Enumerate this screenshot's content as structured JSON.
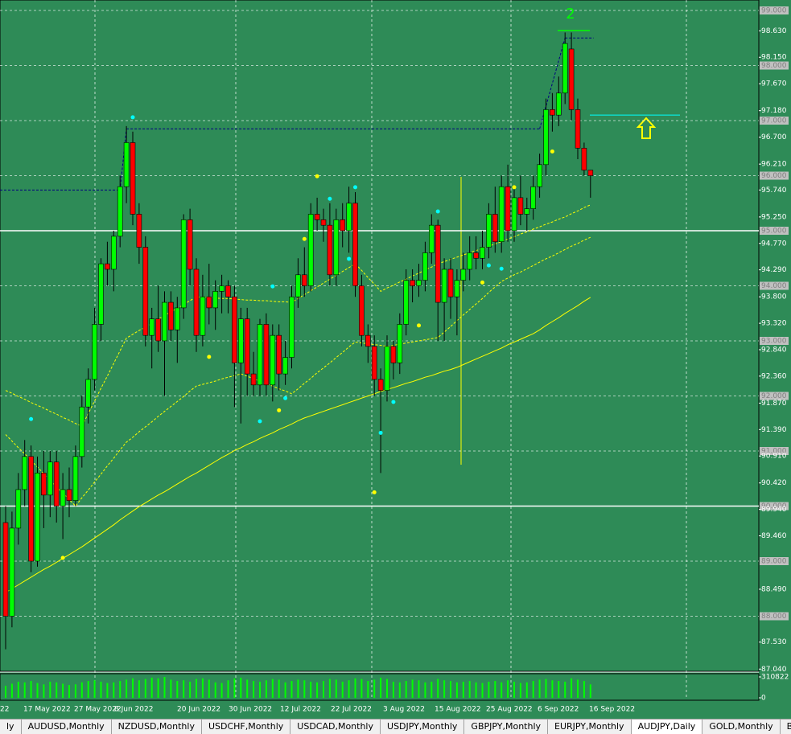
{
  "chart_data": {
    "type": "candlestick",
    "annotation": "2",
    "ylim": [
      87.0,
      99.19
    ],
    "yticks": [
      {
        "value": 98.63,
        "label": "98.630"
      },
      {
        "value": 98.15,
        "label": "98.150"
      },
      {
        "value": 97.67,
        "label": "97.670"
      },
      {
        "value": 97.18,
        "label": "97.180"
      },
      {
        "value": 96.7,
        "label": "96.700"
      },
      {
        "value": 96.21,
        "label": "96.210"
      },
      {
        "value": 95.74,
        "label": "95.740"
      },
      {
        "value": 95.25,
        "label": "95.250"
      },
      {
        "value": 94.77,
        "label": "94.770"
      },
      {
        "value": 94.29,
        "label": "94.290"
      },
      {
        "value": 93.8,
        "label": "93.800"
      },
      {
        "value": 93.32,
        "label": "93.320"
      },
      {
        "value": 92.84,
        "label": "92.840"
      },
      {
        "value": 92.36,
        "label": "92.360"
      },
      {
        "value": 91.87,
        "label": "91.870"
      },
      {
        "value": 91.39,
        "label": "91.390"
      },
      {
        "value": 90.91,
        "label": "90.910"
      },
      {
        "value": 90.42,
        "label": "90.420"
      },
      {
        "value": 89.94,
        "label": "89.940"
      },
      {
        "value": 89.46,
        "label": "89.460"
      },
      {
        "value": 88.49,
        "label": "88.490"
      },
      {
        "value": 87.53,
        "label": "87.530"
      },
      {
        "value": 87.04,
        "label": "87.040"
      }
    ],
    "levels": [
      {
        "value": 99,
        "label": "99.000"
      },
      {
        "value": 98,
        "label": "98.000"
      },
      {
        "value": 97,
        "label": "97.000"
      },
      {
        "value": 96,
        "label": "96.000"
      },
      {
        "value": 95,
        "label": "95.000"
      },
      {
        "value": 94,
        "label": "94.000"
      },
      {
        "value": 93,
        "label": "93.000"
      },
      {
        "value": 92,
        "label": "92.000"
      },
      {
        "value": 91,
        "label": "91.000"
      },
      {
        "value": 90,
        "label": "90.000"
      },
      {
        "value": 89,
        "label": "89.000"
      },
      {
        "value": 88,
        "label": "88.000"
      }
    ],
    "hlines": [
      95,
      90
    ],
    "target_line": 97.1,
    "step_line": [
      95.74,
      96.85,
      98.5
    ],
    "date_labels": [
      "22",
      "17 May 2022",
      "27 May 2022",
      "8 Jun 2022",
      "20 Jun 2022",
      "30 Jun 2022",
      "12 Jul 2022",
      "22 Jul 2022",
      "3 Aug 2022",
      "15 Aug 2022",
      "25 Aug 2022",
      "6 Sep 2022",
      "16 Sep 2022"
    ],
    "candles": [
      [
        89.7,
        90.0,
        87.4,
        88.0
      ],
      [
        88.0,
        89.9,
        87.8,
        89.6
      ],
      [
        89.6,
        90.6,
        89.3,
        90.3
      ],
      [
        90.3,
        91.2,
        90.0,
        90.9
      ],
      [
        90.9,
        91.1,
        88.8,
        89.0
      ],
      [
        89.0,
        90.9,
        88.9,
        90.6
      ],
      [
        90.6,
        91.0,
        89.6,
        90.2
      ],
      [
        90.2,
        91.0,
        89.8,
        90.8
      ],
      [
        90.8,
        91.0,
        89.7,
        90.0
      ],
      [
        90.0,
        90.6,
        89.4,
        90.3
      ],
      [
        90.3,
        90.7,
        89.8,
        90.1
      ],
      [
        90.1,
        91.1,
        90.0,
        90.9
      ],
      [
        90.9,
        92.0,
        90.7,
        91.8
      ],
      [
        91.8,
        92.5,
        91.5,
        92.3
      ],
      [
        92.3,
        93.6,
        92.1,
        93.3
      ],
      [
        93.3,
        94.5,
        93.0,
        94.4
      ],
      [
        94.4,
        94.8,
        94.0,
        94.3
      ],
      [
        94.3,
        95.0,
        93.9,
        94.9
      ],
      [
        94.9,
        96.0,
        94.7,
        95.8
      ],
      [
        95.8,
        96.9,
        95.5,
        96.6
      ],
      [
        96.6,
        96.8,
        95.1,
        95.3
      ],
      [
        95.3,
        95.5,
        94.4,
        94.7
      ],
      [
        94.7,
        94.9,
        92.9,
        93.1
      ],
      [
        93.1,
        93.6,
        92.5,
        93.4
      ],
      [
        93.4,
        94.0,
        92.8,
        93.0
      ],
      [
        93.0,
        93.9,
        92.0,
        93.7
      ],
      [
        93.7,
        93.9,
        93.0,
        93.2
      ],
      [
        93.2,
        93.8,
        92.6,
        93.6
      ],
      [
        93.6,
        95.3,
        93.4,
        95.2
      ],
      [
        95.2,
        95.4,
        94.0,
        94.3
      ],
      [
        94.3,
        94.5,
        92.8,
        93.1
      ],
      [
        93.1,
        94.2,
        92.9,
        93.8
      ],
      [
        93.8,
        94.4,
        93.3,
        93.6
      ],
      [
        93.6,
        94.1,
        93.2,
        93.9
      ],
      [
        93.9,
        94.2,
        93.5,
        94.0
      ],
      [
        94.0,
        94.1,
        93.5,
        93.8
      ],
      [
        93.8,
        94.0,
        91.8,
        92.6
      ],
      [
        92.6,
        93.6,
        91.5,
        93.4
      ],
      [
        93.4,
        93.6,
        92.0,
        92.4
      ],
      [
        92.4,
        92.8,
        92.0,
        92.2
      ],
      [
        92.2,
        93.4,
        92.0,
        93.3
      ],
      [
        93.3,
        93.5,
        92.0,
        92.2
      ],
      [
        92.2,
        93.3,
        91.9,
        93.1
      ],
      [
        93.1,
        93.3,
        92.1,
        92.4
      ],
      [
        92.4,
        93.0,
        92.2,
        92.7
      ],
      [
        92.7,
        94.0,
        92.5,
        93.8
      ],
      [
        93.8,
        94.5,
        93.6,
        94.2
      ],
      [
        94.2,
        94.7,
        93.8,
        94.0
      ],
      [
        94.0,
        95.5,
        93.9,
        95.3
      ],
      [
        95.3,
        95.6,
        95.0,
        95.2
      ],
      [
        95.2,
        95.4,
        94.8,
        95.1
      ],
      [
        95.1,
        95.5,
        94.0,
        94.2
      ],
      [
        94.2,
        95.4,
        94.0,
        95.2
      ],
      [
        95.2,
        95.5,
        94.7,
        95.0
      ],
      [
        95.0,
        95.8,
        94.6,
        95.5
      ],
      [
        95.5,
        95.7,
        93.8,
        94.0
      ],
      [
        94.0,
        94.2,
        92.9,
        93.1
      ],
      [
        93.1,
        93.3,
        92.6,
        92.9
      ],
      [
        92.9,
        93.1,
        92.0,
        92.3
      ],
      [
        92.3,
        92.5,
        90.6,
        92.1
      ],
      [
        92.1,
        93.1,
        91.9,
        92.9
      ],
      [
        92.9,
        93.0,
        92.3,
        92.6
      ],
      [
        92.6,
        93.5,
        92.4,
        93.3
      ],
      [
        93.3,
        94.3,
        93.1,
        94.1
      ],
      [
        94.1,
        94.3,
        93.7,
        94.0
      ],
      [
        94.0,
        94.4,
        93.8,
        94.1
      ],
      [
        94.1,
        94.8,
        93.9,
        94.6
      ],
      [
        94.6,
        95.3,
        94.4,
        95.1
      ],
      [
        95.1,
        95.2,
        93.0,
        93.7
      ],
      [
        93.7,
        94.5,
        93.0,
        94.3
      ],
      [
        94.3,
        94.5,
        93.4,
        93.8
      ],
      [
        93.8,
        94.3,
        93.1,
        94.1
      ],
      [
        94.1,
        94.6,
        93.9,
        94.3
      ],
      [
        94.3,
        94.9,
        94.1,
        94.6
      ],
      [
        94.6,
        94.9,
        94.3,
        94.5
      ],
      [
        94.5,
        95.0,
        94.3,
        94.7
      ],
      [
        94.7,
        95.5,
        94.5,
        95.3
      ],
      [
        95.3,
        95.8,
        94.6,
        94.8
      ],
      [
        94.8,
        96.0,
        94.6,
        95.8
      ],
      [
        95.8,
        96.2,
        94.8,
        95.0
      ],
      [
        95.0,
        95.8,
        94.8,
        95.6
      ],
      [
        95.6,
        96.0,
        95.1,
        95.3
      ],
      [
        95.3,
        95.6,
        95.0,
        95.4
      ],
      [
        95.4,
        96.0,
        95.2,
        95.8
      ],
      [
        95.8,
        96.4,
        95.6,
        96.2
      ],
      [
        96.2,
        97.4,
        96.0,
        97.2
      ],
      [
        97.2,
        97.5,
        96.8,
        97.1
      ],
      [
        97.1,
        97.8,
        96.9,
        97.5
      ],
      [
        97.5,
        98.6,
        97.3,
        98.4
      ],
      [
        98.3,
        98.6,
        97.0,
        97.2
      ],
      [
        97.2,
        97.4,
        96.3,
        96.5
      ],
      [
        96.5,
        96.6,
        96.0,
        96.1
      ],
      [
        96.1,
        96.1,
        95.6,
        96.0
      ]
    ],
    "indicators": [
      {
        "color": "#ffff00",
        "dash": false,
        "values": [
          88.43,
          88.5,
          88.57,
          88.64,
          88.71,
          88.78,
          88.85,
          88.91,
          88.98,
          89.05,
          89.12,
          89.19,
          89.26,
          89.34,
          89.42,
          89.5,
          89.58,
          89.66,
          89.75,
          89.83,
          89.91,
          89.99,
          90.06,
          90.13,
          90.2,
          90.26,
          90.33,
          90.4,
          90.47,
          90.54,
          90.6,
          90.67,
          90.74,
          90.81,
          90.88,
          90.94,
          91.01,
          91.06,
          91.12,
          91.17,
          91.23,
          91.28,
          91.33,
          91.39,
          91.44,
          91.49,
          91.55,
          91.6,
          91.64,
          91.68,
          91.72,
          91.76,
          91.8,
          91.84,
          91.88,
          91.92,
          91.96,
          92.0,
          92.04,
          92.08,
          92.12,
          92.15,
          92.19,
          92.23,
          92.26,
          92.3,
          92.34,
          92.37,
          92.41,
          92.45,
          92.48,
          92.52,
          92.57,
          92.62,
          92.67,
          92.72,
          92.77,
          92.82,
          92.87,
          92.93,
          92.98,
          93.03,
          93.08,
          93.13,
          93.2,
          93.28,
          93.35,
          93.42,
          93.5,
          93.57,
          93.64,
          93.72,
          93.79
        ]
      },
      {
        "color": "#ffff00",
        "dash": true,
        "values": [
          92.1,
          92.05,
          91.99,
          91.94,
          91.88,
          91.83,
          91.78,
          91.72,
          91.67,
          91.61,
          91.56,
          91.5,
          91.45,
          91.68,
          91.91,
          92.14,
          92.36,
          92.59,
          92.82,
          93.05,
          93.12,
          93.19,
          93.25,
          93.32,
          93.39,
          93.46,
          93.53,
          93.59,
          93.66,
          93.73,
          93.8,
          93.79,
          93.79,
          93.78,
          93.77,
          93.77,
          93.76,
          93.75,
          93.74,
          93.74,
          93.73,
          93.73,
          93.72,
          93.71,
          93.71,
          93.7,
          93.77,
          93.84,
          93.91,
          93.98,
          94.05,
          94.12,
          94.19,
          94.26,
          94.33,
          94.4,
          94.28,
          94.15,
          94.03,
          93.9,
          93.96,
          94.01,
          94.07,
          94.12,
          94.18,
          94.23,
          94.29,
          94.34,
          94.4,
          94.44,
          94.48,
          94.52,
          94.56,
          94.6,
          94.64,
          94.68,
          94.72,
          94.76,
          94.8,
          94.85,
          94.89,
          94.94,
          94.98,
          95.03,
          95.07,
          95.12,
          95.16,
          95.21,
          95.25,
          95.31,
          95.36,
          95.42,
          95.47
        ]
      },
      {
        "color": "#ffff00",
        "dash": true,
        "values": [
          91.3,
          91.18,
          91.06,
          90.95,
          90.83,
          90.71,
          90.59,
          90.47,
          90.35,
          90.24,
          90.12,
          90.0,
          90.15,
          90.29,
          90.44,
          90.58,
          90.73,
          90.87,
          91.02,
          91.16,
          91.25,
          91.35,
          91.44,
          91.53,
          91.63,
          91.72,
          91.81,
          91.9,
          91.99,
          92.09,
          92.18,
          92.21,
          92.24,
          92.27,
          92.31,
          92.34,
          92.37,
          92.4,
          92.36,
          92.31,
          92.27,
          92.22,
          92.18,
          92.13,
          92.09,
          92.04,
          92.13,
          92.23,
          92.32,
          92.42,
          92.51,
          92.6,
          92.7,
          92.79,
          92.89,
          92.98,
          92.96,
          92.95,
          92.93,
          92.92,
          92.9,
          92.92,
          92.94,
          92.96,
          92.98,
          93.0,
          93.02,
          93.04,
          93.06,
          93.16,
          93.26,
          93.37,
          93.47,
          93.57,
          93.67,
          93.77,
          93.88,
          93.98,
          94.08,
          94.14,
          94.2,
          94.25,
          94.31,
          94.37,
          94.43,
          94.49,
          94.54,
          94.6,
          94.66,
          94.72,
          94.77,
          94.83,
          94.88
        ]
      }
    ],
    "dots": [
      {
        "color": "#00ffff",
        "values": [
          null,
          null,
          null,
          null,
          91.58,
          null,
          null,
          null,
          null,
          null,
          null,
          null,
          null,
          null,
          null,
          null,
          null,
          null,
          null,
          null,
          97.06,
          null,
          null,
          null,
          null,
          null,
          null,
          null,
          null,
          null,
          null,
          null,
          null,
          null,
          null,
          null,
          null,
          null,
          null,
          null,
          91.54,
          null,
          93.99,
          null,
          91.96,
          null,
          null,
          null,
          null,
          null,
          null,
          95.58,
          null,
          null,
          94.49,
          95.79,
          null,
          null,
          null,
          91.33,
          null,
          91.89,
          null,
          null,
          null,
          null,
          null,
          null,
          95.35,
          null,
          null,
          null,
          null,
          null,
          null,
          null,
          94.37,
          null,
          94.31,
          null,
          null,
          null,
          null,
          null,
          null,
          null,
          null,
          null,
          null,
          null,
          null,
          null,
          null
        ]
      },
      {
        "color": "#ffff00",
        "values": [
          null,
          null,
          null,
          null,
          null,
          null,
          null,
          null,
          null,
          89.06,
          null,
          null,
          null,
          null,
          null,
          null,
          null,
          null,
          null,
          null,
          null,
          null,
          null,
          null,
          null,
          null,
          null,
          null,
          null,
          null,
          null,
          null,
          92.71,
          null,
          null,
          null,
          null,
          null,
          null,
          null,
          null,
          null,
          null,
          91.74,
          null,
          null,
          null,
          94.85,
          null,
          95.99,
          null,
          null,
          null,
          null,
          null,
          null,
          null,
          null,
          90.25,
          null,
          null,
          null,
          null,
          null,
          null,
          93.28,
          null,
          null,
          null,
          null,
          null,
          null,
          null,
          null,
          null,
          94.06,
          null,
          null,
          null,
          null,
          95.79,
          null,
          null,
          null,
          null,
          null,
          96.44,
          null,
          null,
          null,
          null,
          null,
          null
        ]
      }
    ],
    "volume": {
      "ylim": [
        0,
        310822
      ],
      "yticks": [
        310822,
        0
      ],
      "values": [
        180000,
        210000,
        240000,
        230000,
        250000,
        220000,
        200000,
        240000,
        230000,
        210000,
        190000,
        200000,
        230000,
        250000,
        260000,
        240000,
        220000,
        230000,
        250000,
        270000,
        290000,
        260000,
        280000,
        300000,
        290000,
        310822,
        270000,
        250000,
        260000,
        240000,
        280000,
        290000,
        270000,
        230000,
        220000,
        260000,
        290000,
        300000,
        270000,
        250000,
        240000,
        260000,
        280000,
        270000,
        230000,
        250000,
        270000,
        260000,
        240000,
        230000,
        250000,
        280000,
        270000,
        240000,
        260000,
        290000,
        280000,
        250000,
        270000,
        300000,
        280000,
        240000,
        230000,
        250000,
        270000,
        260000,
        230000,
        240000,
        280000,
        260000,
        250000,
        230000,
        240000,
        250000,
        230000,
        220000,
        240000,
        250000,
        230000,
        260000,
        240000,
        220000,
        230000,
        250000,
        270000,
        280000,
        260000,
        250000,
        240000,
        290000,
        270000,
        250000,
        200000
      ]
    }
  },
  "tabs": [
    "ly",
    "AUDUSD,Monthly",
    "NZDUSD,Monthly",
    "USDCHF,Monthly",
    "USDCAD,Monthly",
    "USDJPY,Monthly",
    "GBPJPY,Monthly",
    "EURJPY,Monthly",
    "AUDJPY,Daily",
    "GOLD,Monthly",
    "BRE"
  ]
}
